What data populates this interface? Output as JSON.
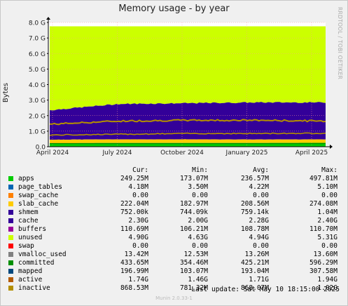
{
  "chart_data": {
    "type": "area",
    "title": "Memory usage - by year",
    "ylabel": "Bytes",
    "ylim": [
      0,
      8.0
    ],
    "y_unit": "G",
    "y_ticks": [
      "0.0",
      "1.0 G",
      "2.0 G",
      "3.0 G",
      "4.0 G",
      "5.0 G",
      "6.0 G",
      "7.0 G",
      "8.0 G"
    ],
    "x_ticks": [
      "April 2024",
      "July 2024",
      "October 2024",
      "January 2025",
      "April 2025"
    ],
    "grid": true,
    "stack_approx_G": {
      "x": [
        "April 2024",
        "July 2024",
        "October 2024",
        "January 2025",
        "April 2025"
      ],
      "apps": [
        0.22,
        0.24,
        0.24,
        0.24,
        0.25
      ],
      "slab_cache_top": [
        0.45,
        0.47,
        0.47,
        0.46,
        0.47
      ],
      "cache_top": [
        2.35,
        2.75,
        2.8,
        2.85,
        2.85
      ],
      "total": [
        7.75,
        7.75,
        7.75,
        7.75,
        7.75
      ],
      "committed_line": [
        1.45,
        1.65,
        1.7,
        1.7,
        1.65
      ],
      "inactive_line": [
        0.75,
        0.8,
        0.85,
        0.85,
        0.87
      ],
      "mapped_line": [
        0.2,
        0.2,
        0.2,
        0.2,
        0.2
      ]
    },
    "legend_headers": [
      "Cur:",
      "Min:",
      "Avg:",
      "Max:"
    ],
    "series": [
      {
        "name": "apps",
        "color": "#00cc00",
        "cur": "249.25M",
        "min": "173.07M",
        "avg": "236.57M",
        "max": "497.81M"
      },
      {
        "name": "page_tables",
        "color": "#0066b3",
        "cur": "4.18M",
        "min": "3.50M",
        "avg": "4.22M",
        "max": "5.10M"
      },
      {
        "name": "swap_cache",
        "color": "#ff8000",
        "cur": "0.00",
        "min": "0.00",
        "avg": "0.00",
        "max": "0.00"
      },
      {
        "name": "slab_cache",
        "color": "#ffcc00",
        "cur": "222.04M",
        "min": "182.97M",
        "avg": "208.56M",
        "max": "274.08M"
      },
      {
        "name": "shmem",
        "color": "#330099",
        "cur": "752.00k",
        "min": "744.09k",
        "avg": "759.14k",
        "max": "1.04M"
      },
      {
        "name": "cache",
        "color": "#330099",
        "cur": "2.30G",
        "min": "2.00G",
        "avg": "2.28G",
        "max": "2.40G"
      },
      {
        "name": "buffers",
        "color": "#990099",
        "cur": "110.69M",
        "min": "106.21M",
        "avg": "108.78M",
        "max": "110.70M"
      },
      {
        "name": "unused",
        "color": "#ccff00",
        "cur": "4.90G",
        "min": "4.63G",
        "avg": "4.94G",
        "max": "5.31G"
      },
      {
        "name": "swap",
        "color": "#ff0000",
        "cur": "0.00",
        "min": "0.00",
        "avg": "0.00",
        "max": "0.00"
      },
      {
        "name": "vmalloc_used",
        "color": "#808080",
        "cur": "13.42M",
        "min": "12.53M",
        "avg": "13.26M",
        "max": "13.60M"
      },
      {
        "name": "committed",
        "color": "#008f00",
        "cur": "433.65M",
        "min": "354.46M",
        "avg": "425.21M",
        "max": "596.29M"
      },
      {
        "name": "mapped",
        "color": "#00487d",
        "cur": "196.99M",
        "min": "103.07M",
        "avg": "193.04M",
        "max": "307.58M"
      },
      {
        "name": "active",
        "color": "#b35a00",
        "cur": "1.74G",
        "min": "1.46G",
        "avg": "1.71G",
        "max": "1.94G"
      },
      {
        "name": "inactive",
        "color": "#b38f00",
        "cur": "868.53M",
        "min": "781.32M",
        "avg": "868.07M",
        "max": "1.02G"
      }
    ]
  },
  "side_label": "RRDTOOL / TOBI OETIKER",
  "last_update": "Last update:  Sat May 10 18:15:00 2025",
  "footer": "Munin 2.0.33-1"
}
